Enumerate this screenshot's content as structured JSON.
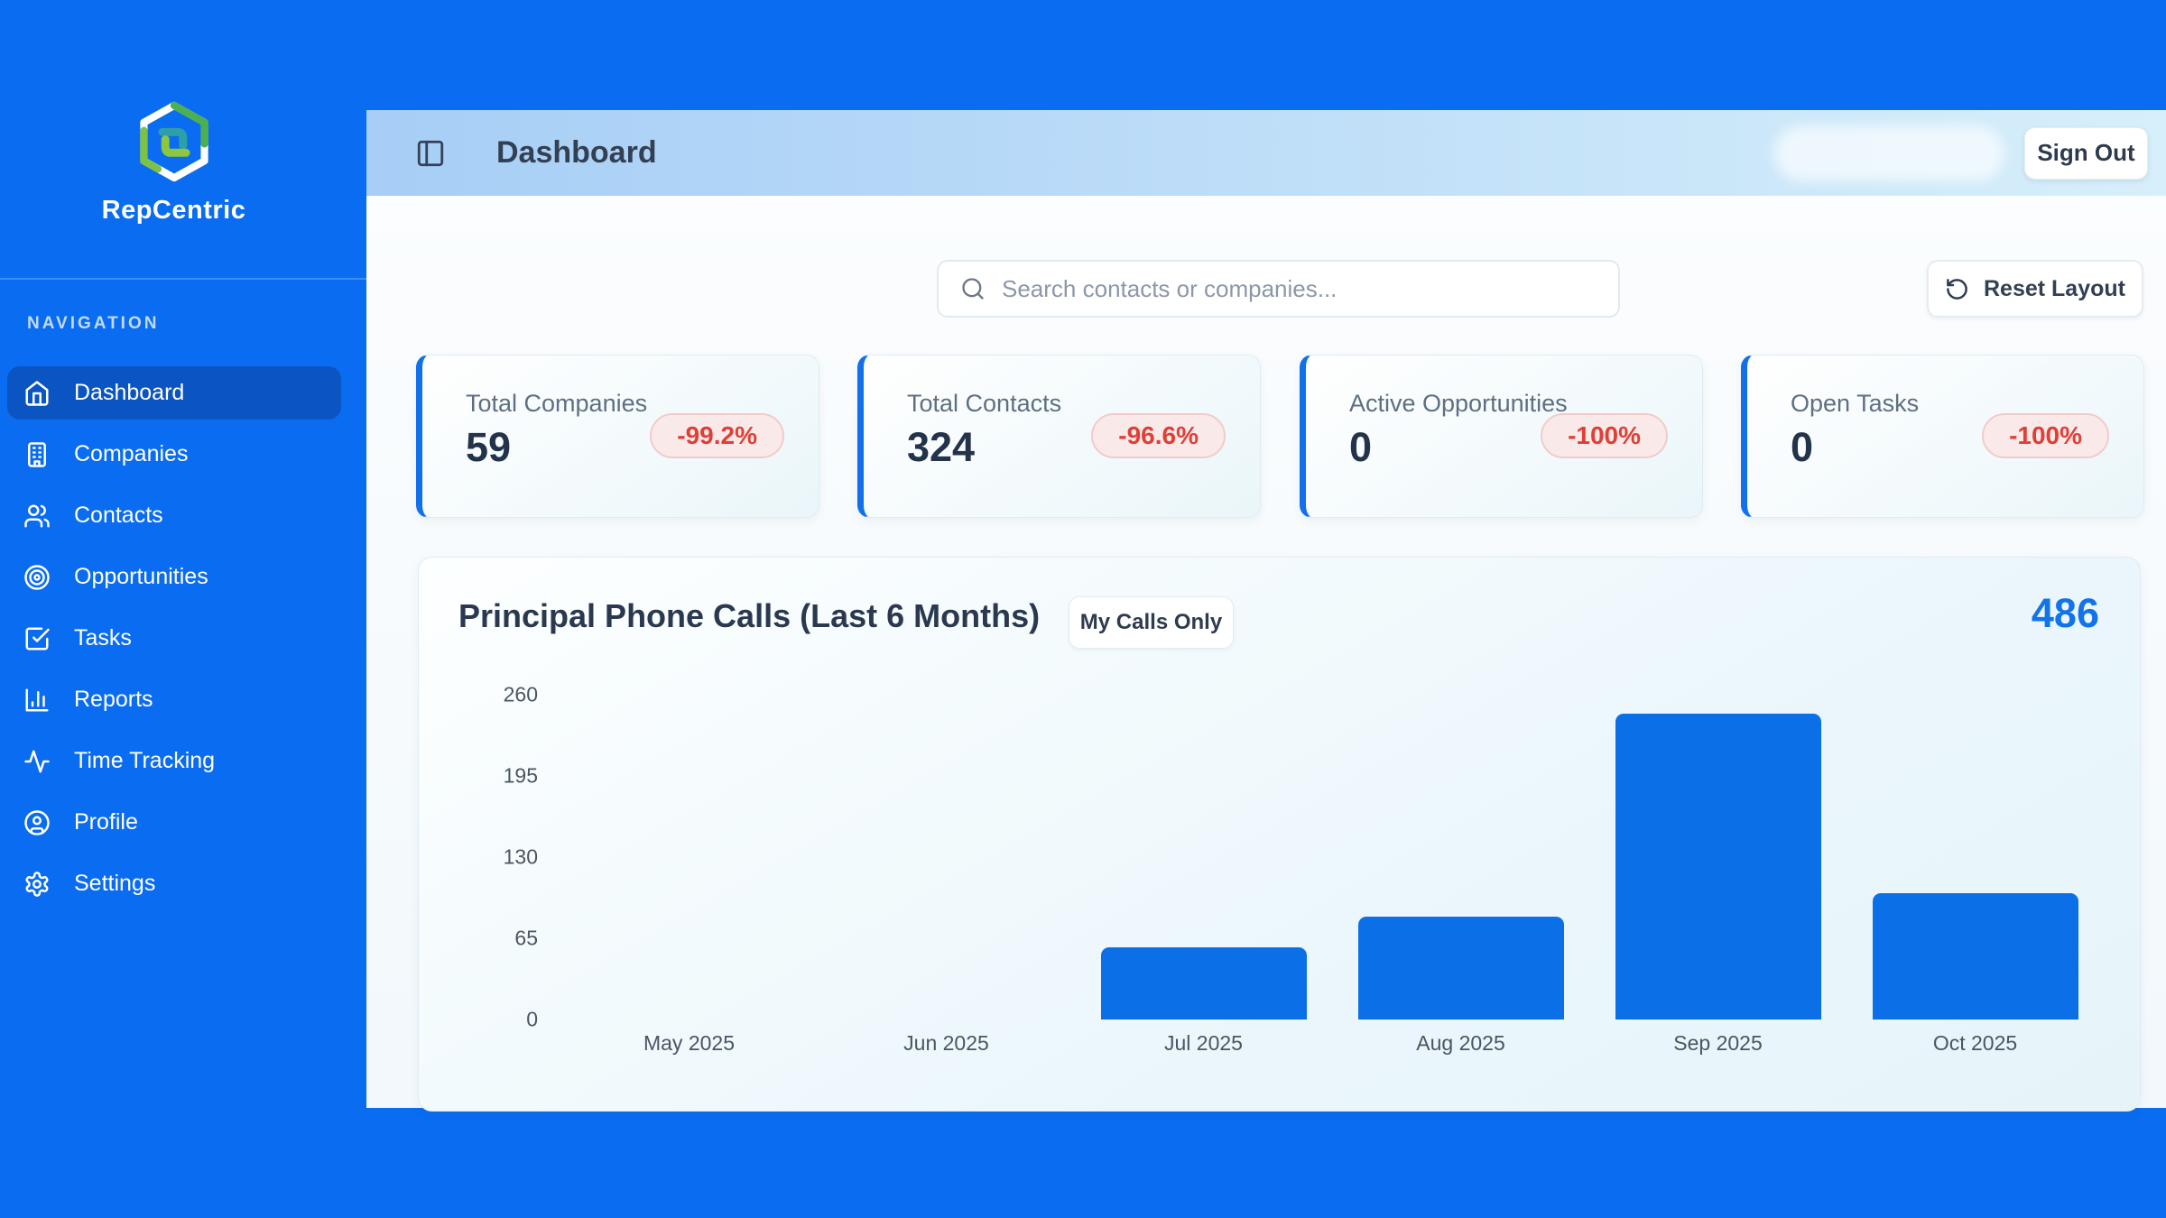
{
  "brand": {
    "name": "RepCentric",
    "logo_icon": "hexagon-logo-icon"
  },
  "sidebar": {
    "section_label": "NAVIGATION",
    "items": [
      {
        "label": "Dashboard",
        "icon": "home-icon",
        "active": true
      },
      {
        "label": "Companies",
        "icon": "building-icon",
        "active": false
      },
      {
        "label": "Contacts",
        "icon": "users-icon",
        "active": false
      },
      {
        "label": "Opportunities",
        "icon": "target-icon",
        "active": false
      },
      {
        "label": "Tasks",
        "icon": "check-square-icon",
        "active": false
      },
      {
        "label": "Reports",
        "icon": "bar-chart-icon",
        "active": false
      },
      {
        "label": "Time Tracking",
        "icon": "activity-icon",
        "active": false
      },
      {
        "label": "Profile",
        "icon": "user-circle-icon",
        "active": false
      },
      {
        "label": "Settings",
        "icon": "gear-icon",
        "active": false
      }
    ]
  },
  "header": {
    "title": "Dashboard",
    "sign_out_label": "Sign Out",
    "user_chip": "redacted-blurred"
  },
  "toolbar": {
    "search_placeholder": "Search contacts or companies...",
    "reset_layout_label": "Reset Layout"
  },
  "stats": [
    {
      "label": "Total Companies",
      "value": "59",
      "delta": "-99.2%"
    },
    {
      "label": "Total Contacts",
      "value": "324",
      "delta": "-96.6%"
    },
    {
      "label": "Active Opportunities",
      "value": "0",
      "delta": "-100%"
    },
    {
      "label": "Open Tasks",
      "value": "0",
      "delta": "-100%"
    }
  ],
  "chart_card": {
    "title": "Principal Phone Calls (Last 6 Months)",
    "filter_button": "My Calls Only",
    "total": "486"
  },
  "chart_data": {
    "type": "bar",
    "title": "Principal Phone Calls (Last 6 Months)",
    "categories": [
      "May 2025",
      "Jun 2025",
      "Jul 2025",
      "Aug 2025",
      "Sep 2025",
      "Oct 2025"
    ],
    "values": [
      0,
      0,
      58,
      82,
      245,
      101
    ],
    "total": 486,
    "xlabel": "",
    "ylabel": "",
    "ylim": [
      0,
      260
    ],
    "yticks": [
      0,
      65,
      130,
      195,
      260
    ],
    "grid": false,
    "legend": false,
    "bar_color": "#0B70E8"
  },
  "colors": {
    "accent_blue": "#0A6CF0",
    "active_nav": "#0A55C2",
    "bar_blue": "#0B70E8",
    "total_blue": "#1273EB",
    "negative_red": "#DE3F36",
    "badge_bg": "#FAE9E9",
    "header_gradient_start": "#A6CEF6",
    "header_gradient_end": "#D6EFFA"
  }
}
